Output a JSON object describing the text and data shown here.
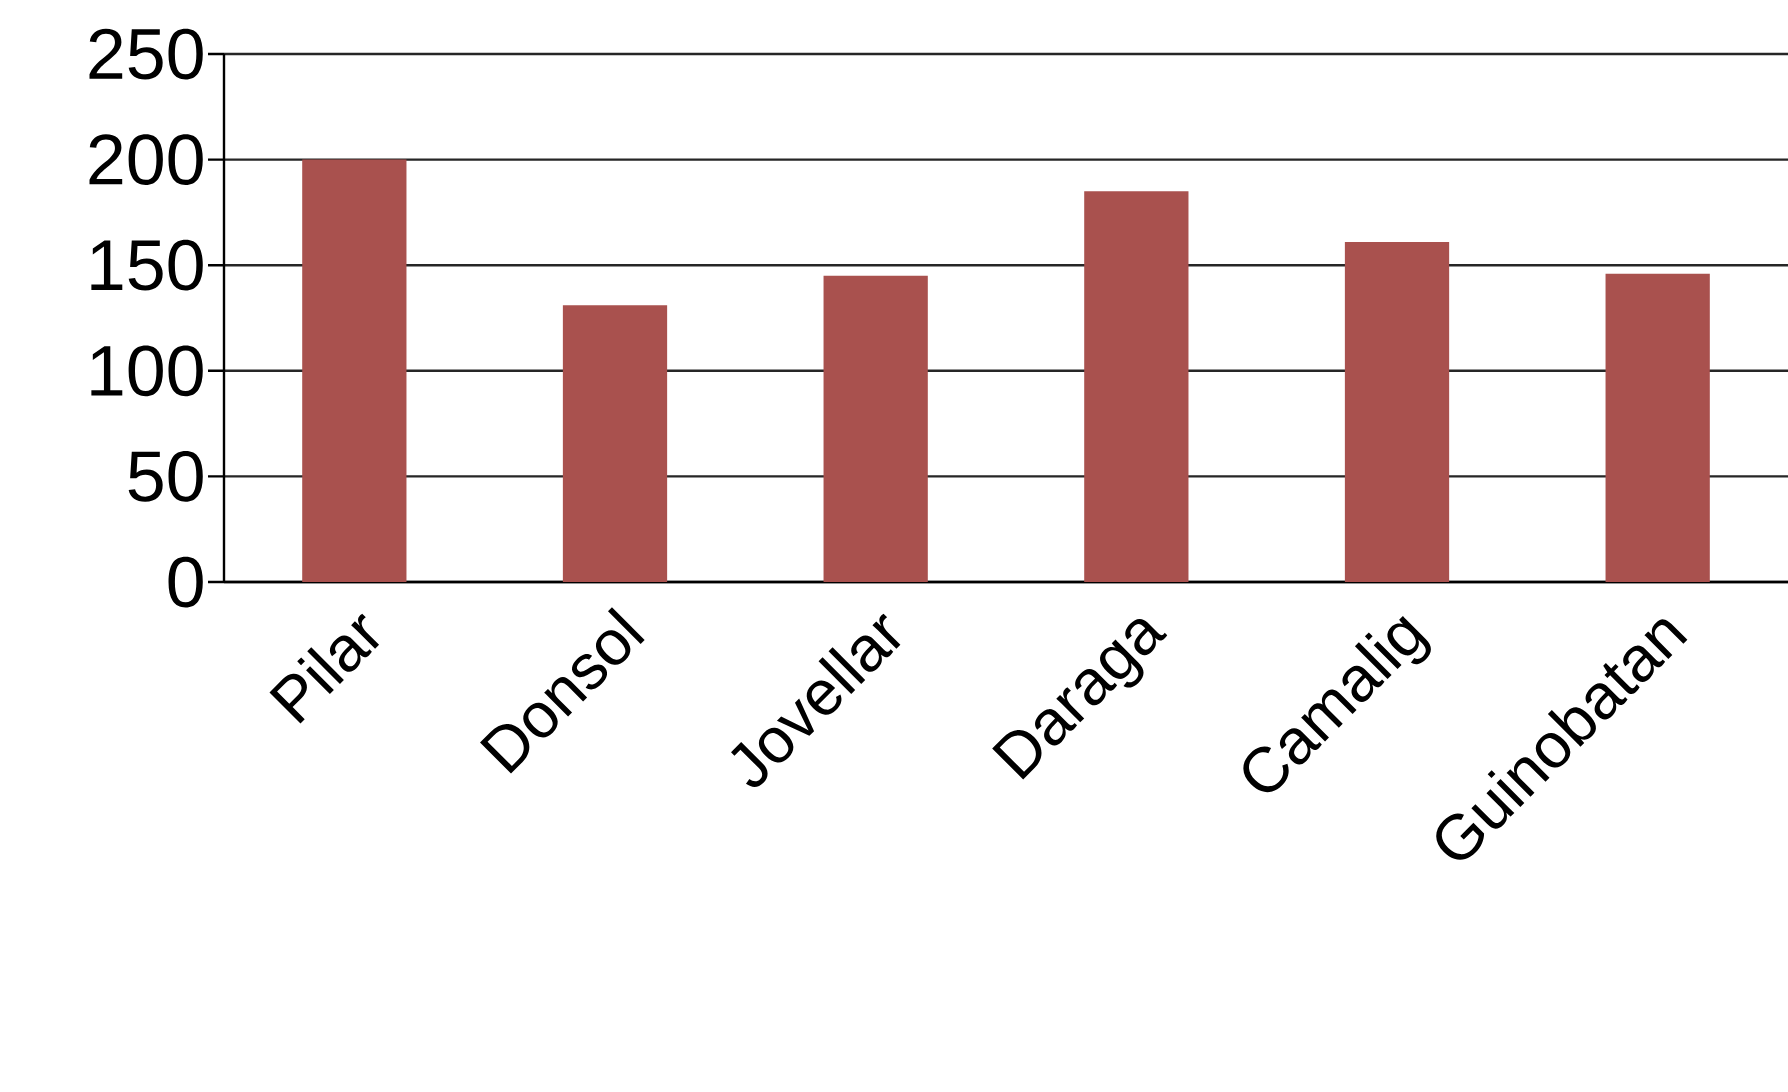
{
  "chart_data": {
    "type": "bar",
    "categories": [
      "Pilar",
      "Donsol",
      "Jovellar",
      "Daraga",
      "Camalig",
      "Guinobatan"
    ],
    "values": [
      200,
      131,
      145,
      185,
      161,
      146
    ],
    "color": "#a9514e",
    "ylim": [
      0,
      250
    ],
    "yticks": [
      0,
      50,
      100,
      150,
      200,
      250
    ],
    "grid": "y"
  }
}
